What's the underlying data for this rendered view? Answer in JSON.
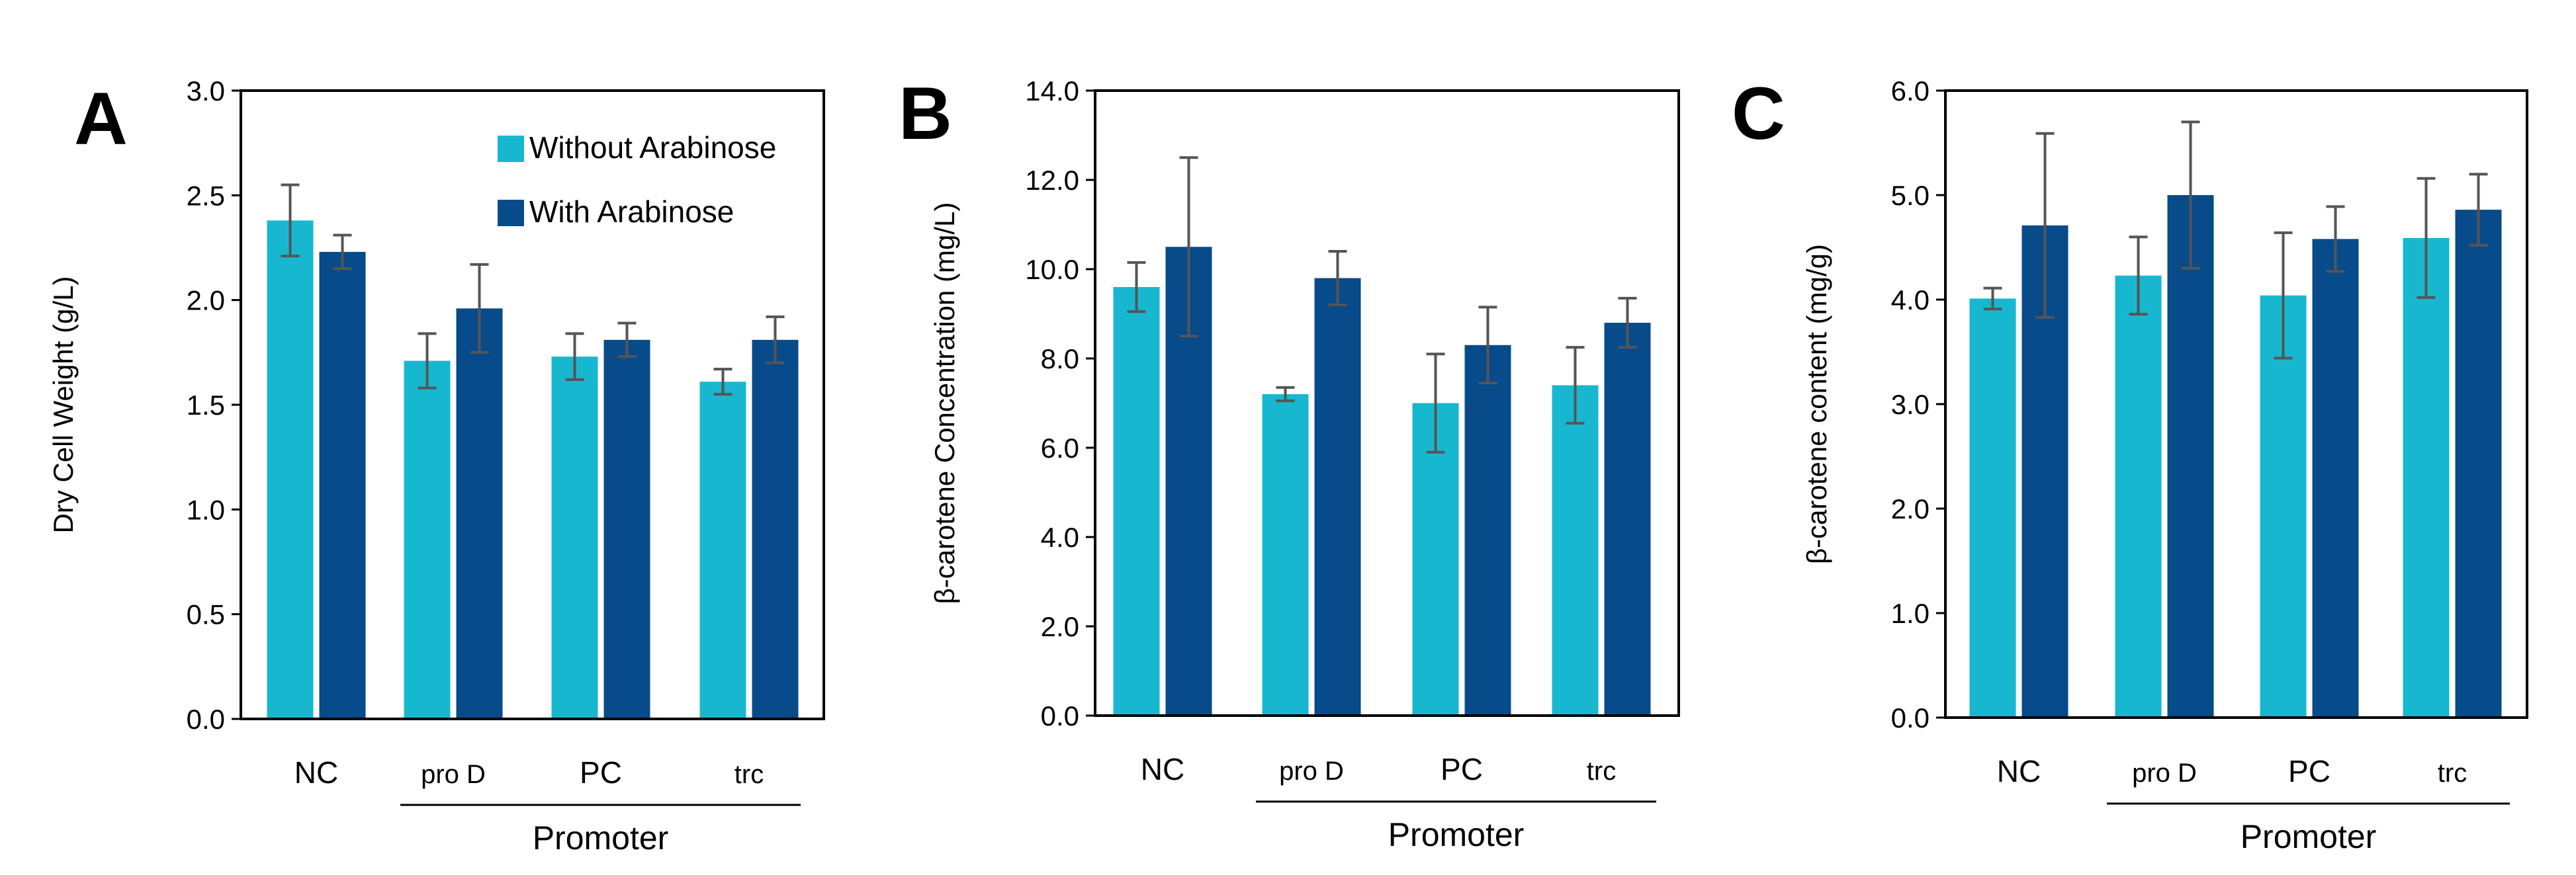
{
  "colors": {
    "without": "#17B8CF",
    "with": "#074B8A",
    "error": "#555555",
    "axis": "#000000"
  },
  "legend": {
    "items": [
      {
        "label": "Without Arabinose",
        "color": "#17B8CF"
      },
      {
        "label": "With Arabinose",
        "color": "#074B8A"
      }
    ]
  },
  "chart_data": [
    {
      "type": "bar",
      "panel_label": "A",
      "ylabel": "Dry Cell Weight (g/L)",
      "xlabel": "Promoter",
      "ylim": [
        0,
        3.0
      ],
      "yticks": [
        "0.0",
        "0.5",
        "1.0",
        "1.5",
        "2.0",
        "2.5",
        "3.0"
      ],
      "categories": [
        "NC",
        "pro D",
        "PC",
        "trc"
      ],
      "bracket_start_category": 1,
      "legend_location": "top-right",
      "series": [
        {
          "name": "Without Arabinose",
          "values": [
            2.38,
            1.71,
            1.73,
            1.61
          ],
          "errors": [
            0.17,
            0.13,
            0.11,
            0.06
          ]
        },
        {
          "name": "With Arabinose",
          "values": [
            2.23,
            1.96,
            1.81,
            1.81
          ],
          "errors": [
            0.08,
            0.21,
            0.08,
            0.11
          ]
        }
      ]
    },
    {
      "type": "bar",
      "panel_label": "B",
      "ylabel": "β-carotene Concentration (mg/L)",
      "xlabel": "Promoter",
      "ylim": [
        0,
        14.0
      ],
      "yticks": [
        "0.0",
        "2.0",
        "4.0",
        "6.0",
        "8.0",
        "10.0",
        "12.0",
        "14.0"
      ],
      "categories": [
        "NC",
        "pro D",
        "PC",
        "trc"
      ],
      "bracket_start_category": 1,
      "series": [
        {
          "name": "Without Arabinose",
          "values": [
            9.6,
            7.2,
            7.0,
            7.4
          ],
          "errors": [
            0.55,
            0.15,
            1.1,
            0.85
          ]
        },
        {
          "name": "With Arabinose",
          "values": [
            10.5,
            9.8,
            8.3,
            8.8
          ],
          "errors": [
            2.0,
            0.6,
            0.85,
            0.55
          ]
        }
      ]
    },
    {
      "type": "bar",
      "panel_label": "C",
      "ylabel": "β-carotene content (mg/g)",
      "xlabel": "Promoter",
      "ylim": [
        0,
        6.0
      ],
      "yticks": [
        "0.0",
        "1.0",
        "2.0",
        "3.0",
        "4.0",
        "5.0",
        "6.0"
      ],
      "categories": [
        "NC",
        "pro D",
        "PC",
        "trc"
      ],
      "bracket_start_category": 1,
      "series": [
        {
          "name": "Without Arabinose",
          "values": [
            4.01,
            4.23,
            4.04,
            4.59
          ],
          "errors": [
            0.1,
            0.37,
            0.6,
            0.57
          ]
        },
        {
          "name": "With Arabinose",
          "values": [
            4.71,
            5.0,
            4.58,
            4.86
          ],
          "errors": [
            0.88,
            0.7,
            0.31,
            0.34
          ]
        }
      ]
    }
  ]
}
